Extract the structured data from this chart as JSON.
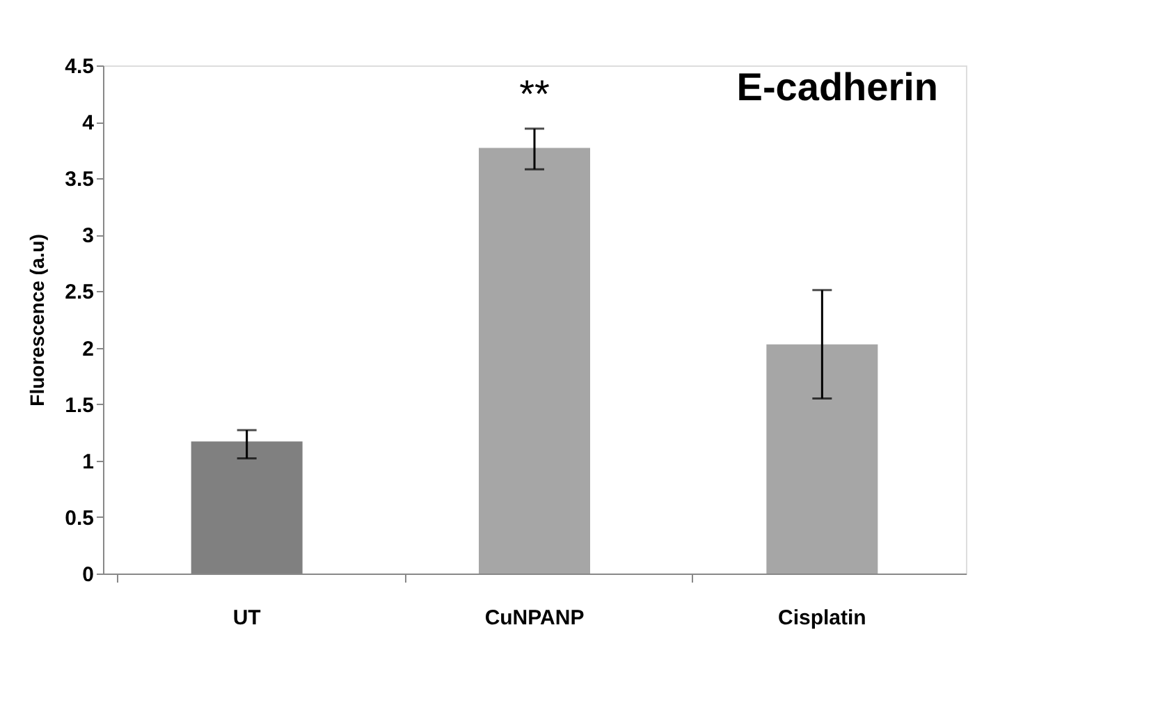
{
  "chart_data": {
    "type": "bar",
    "title": "E-cadherin",
    "ylabel": "Fluorescence (a.u)",
    "categories": [
      "UT",
      "CuNPANP",
      "Cisplatin"
    ],
    "values": [
      1.17,
      3.77,
      2.03
    ],
    "colors": [
      "#808080",
      "#a6a6a6",
      "#a6a6a6"
    ],
    "errors": [
      [
        1.02,
        1.27
      ],
      [
        3.58,
        3.94
      ],
      [
        1.55,
        2.51
      ]
    ],
    "annotations": [
      "**"
    ],
    "ylim": [
      0,
      4.5
    ],
    "yticks": [
      0,
      0.5,
      1,
      1.5,
      2,
      2.5,
      3,
      3.5,
      4,
      4.5
    ],
    "grid": false
  }
}
